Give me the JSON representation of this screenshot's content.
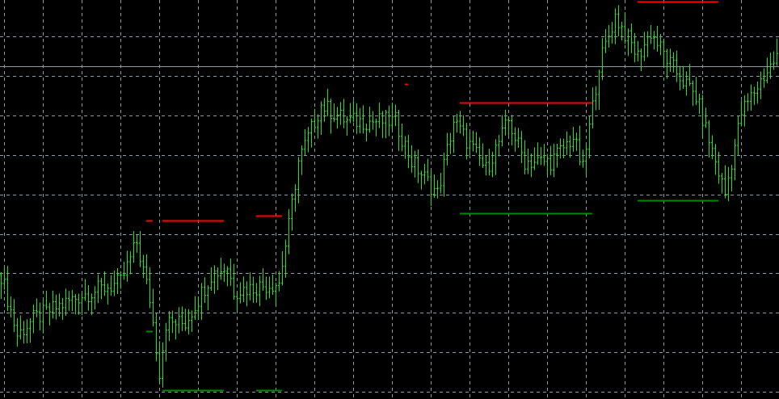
{
  "chart_data": {
    "type": "ohlc",
    "title": "",
    "xlabel": "",
    "ylabel": "",
    "grid": true,
    "ylim": [
      0,
      49.4
    ],
    "bar_count": 241,
    "close_trend": [
      [
        0,
        15.4
      ],
      [
        5,
        7.9
      ],
      [
        10,
        9.9
      ],
      [
        25,
        12.9
      ],
      [
        37,
        14.4
      ],
      [
        42,
        19.4
      ],
      [
        46,
        12.4
      ],
      [
        49,
        3.4
      ],
      [
        51,
        9.4
      ],
      [
        57,
        9.4
      ],
      [
        65,
        15.4
      ],
      [
        70,
        16.4
      ],
      [
        72,
        13.4
      ],
      [
        86,
        14.4
      ],
      [
        89,
        21.4
      ],
      [
        92,
        29.4
      ],
      [
        99,
        36.4
      ],
      [
        107,
        34.4
      ],
      [
        122,
        34.4
      ],
      [
        127,
        29.4
      ],
      [
        135,
        25.4
      ],
      [
        140,
        34.4
      ],
      [
        150,
        28.4
      ],
      [
        157,
        34.4
      ],
      [
        162,
        29.4
      ],
      [
        170,
        29.4
      ],
      [
        177,
        32.4
      ],
      [
        180,
        28.4
      ],
      [
        185,
        41.4
      ],
      [
        190,
        47.4
      ],
      [
        197,
        42.4
      ],
      [
        201,
        45.4
      ],
      [
        207,
        41.4
      ],
      [
        215,
        37.4
      ],
      [
        221,
        29.4
      ],
      [
        224,
        25.4
      ],
      [
        229,
        35.4
      ],
      [
        235,
        39.4
      ],
      [
        240,
        42.4
      ]
    ],
    "horizontal_line": {
      "price": 41.2,
      "color": "#8a98a8"
    },
    "levels": [
      {
        "type": "resistance",
        "price": 22.1,
        "from_bar": 45,
        "to_bar": 47,
        "color": "#ff0000"
      },
      {
        "type": "resistance",
        "price": 22.1,
        "from_bar": 50,
        "to_bar": 69,
        "color": "#ff0000"
      },
      {
        "type": "resistance",
        "price": 22.7,
        "from_bar": 79,
        "to_bar": 87,
        "color": "#ff0000"
      },
      {
        "type": "resistance",
        "price": 39.0,
        "from_bar": 125,
        "to_bar": 126,
        "color": "#ff0000"
      },
      {
        "type": "resistance",
        "price": 36.7,
        "from_bar": 142,
        "to_bar": 183,
        "color": "#ff0000"
      },
      {
        "type": "resistance",
        "price": 49.2,
        "from_bar": 197,
        "to_bar": 222,
        "color": "#ff0000"
      },
      {
        "type": "support",
        "price": 8.4,
        "from_bar": 45,
        "to_bar": 47,
        "color": "#008800"
      },
      {
        "type": "support",
        "price": 1.1,
        "from_bar": 50,
        "to_bar": 69,
        "color": "#008800"
      },
      {
        "type": "support",
        "price": 1.1,
        "from_bar": 79,
        "to_bar": 87,
        "color": "#008800"
      },
      {
        "type": "support",
        "price": 23.0,
        "from_bar": 142,
        "to_bar": 183,
        "color": "#008800"
      },
      {
        "type": "support",
        "price": 24.6,
        "from_bar": 197,
        "to_bar": 222,
        "color": "#008800"
      }
    ],
    "colors": {
      "background": "#000000",
      "bar": "#22e022",
      "grid": "#8a98a8"
    }
  }
}
